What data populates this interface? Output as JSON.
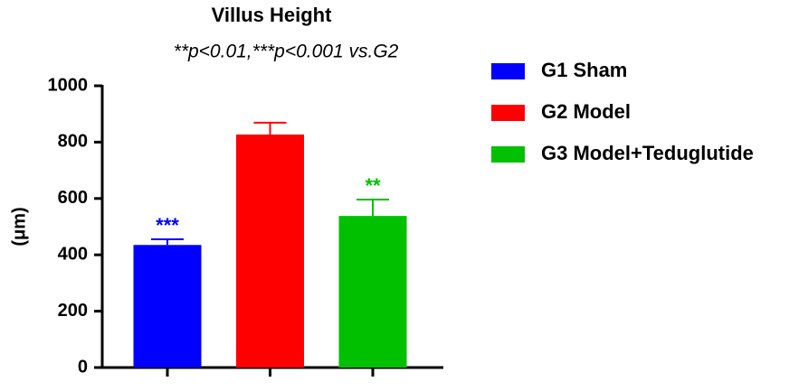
{
  "chart_data": {
    "type": "bar",
    "title": "Villus Height",
    "subtitle": "**p<0.01,***p<0.001 vs.G2",
    "y_label": "(μm)",
    "categories": [
      null
    ],
    "series": [
      {
        "name": "G1 Sham",
        "color": "#0000ff",
        "values": [
          435
        ],
        "errors": [
          20
        ],
        "annotation": "***"
      },
      {
        "name": "G2 Model",
        "color": "#ff0000",
        "values": [
          827
        ],
        "errors": [
          42
        ]
      },
      {
        "name": "G3 Model+Teduglutide",
        "color": "#00c000",
        "values": [
          538
        ],
        "errors": [
          58
        ],
        "annotation": "**"
      }
    ],
    "ylim": [
      0,
      1000
    ],
    "yticks": [
      0,
      200,
      400,
      600,
      800,
      1000
    ],
    "legend": "right"
  }
}
